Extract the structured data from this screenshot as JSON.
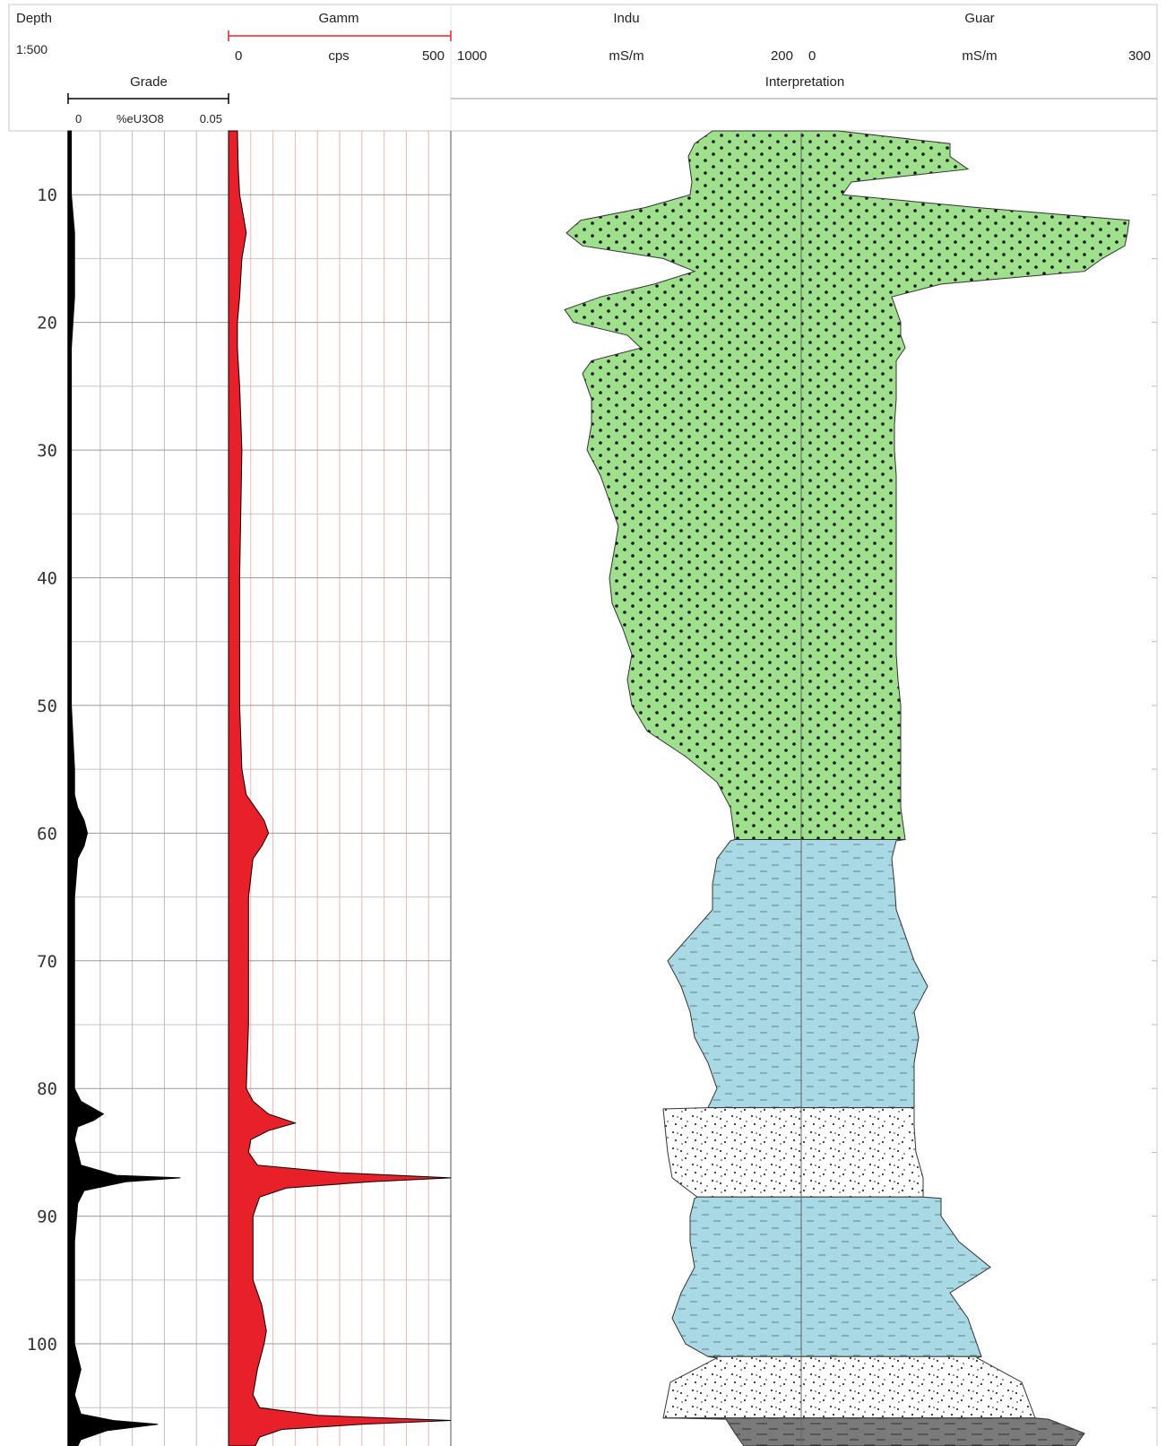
{
  "header": {
    "depth_label": "Depth",
    "scale_label": "1:500",
    "gamma": {
      "title": "Gamm",
      "min": "0",
      "unit": "cps",
      "max": "500",
      "color": "#e8202a"
    },
    "grade": {
      "title": "Grade",
      "min": "0",
      "unit": "%eU3O8",
      "max": "0.05",
      "color": "#000000"
    },
    "induction": {
      "title": "Indu",
      "left": "1000",
      "unit": "mS/m",
      "right": "200"
    },
    "guard": {
      "title": "Guar",
      "left": "0",
      "unit": "mS/m",
      "right": "300"
    },
    "interpretation_title": "Interpretation"
  },
  "chart_data": {
    "type": "area",
    "ylim": [
      5,
      108
    ],
    "depth_ticks": [
      10,
      20,
      30,
      40,
      50,
      60,
      70,
      80,
      90,
      100
    ],
    "grade": {
      "unit": "%eU3O8",
      "xlim": [
        0,
        0.05
      ],
      "depth": [
        5,
        10,
        13,
        18,
        22,
        30,
        40,
        50,
        55,
        57,
        58,
        59,
        60,
        61,
        62,
        65,
        70,
        75,
        80,
        81,
        82,
        82.5,
        83,
        84,
        86,
        86.8,
        87,
        87.3,
        88,
        89,
        92,
        95,
        100,
        101,
        102,
        103,
        104,
        105.5,
        106,
        106.3,
        106.8,
        107.5,
        108
      ],
      "values": [
        0.001,
        0.001,
        0.002,
        0.002,
        0.001,
        0.001,
        0.001,
        0.001,
        0.002,
        0.002,
        0.003,
        0.005,
        0.006,
        0.005,
        0.003,
        0.002,
        0.002,
        0.002,
        0.002,
        0.004,
        0.011,
        0.008,
        0.003,
        0.002,
        0.004,
        0.015,
        0.035,
        0.018,
        0.005,
        0.003,
        0.002,
        0.002,
        0.002,
        0.003,
        0.004,
        0.003,
        0.002,
        0.004,
        0.014,
        0.028,
        0.012,
        0.004,
        0.003
      ]
    },
    "gamma": {
      "unit": "cps",
      "xlim": [
        0,
        500
      ],
      "depth": [
        5,
        8,
        10,
        12,
        13,
        15,
        18,
        20,
        22,
        25,
        30,
        40,
        50,
        55,
        57,
        58,
        59,
        60,
        61,
        62,
        65,
        70,
        75,
        80,
        81,
        82,
        82.7,
        83.3,
        84,
        85,
        86,
        86.6,
        87,
        87.3,
        87.8,
        88.5,
        90,
        95,
        97,
        99,
        100,
        102,
        104,
        105,
        105.6,
        106,
        106.3,
        106.7,
        107.3,
        108
      ],
      "values": [
        20,
        22,
        25,
        35,
        40,
        30,
        25,
        20,
        20,
        25,
        30,
        25,
        25,
        30,
        40,
        60,
        80,
        90,
        75,
        55,
        45,
        45,
        45,
        40,
        55,
        90,
        150,
        90,
        50,
        45,
        65,
        250,
        500,
        320,
        130,
        70,
        55,
        55,
        75,
        85,
        80,
        65,
        55,
        70,
        200,
        500,
        300,
        120,
        70,
        60
      ]
    },
    "interpretation": [
      {
        "top": 5,
        "bottom": 60.5,
        "lithology": "sand",
        "color": "#9ee08c"
      },
      {
        "top": 60.5,
        "bottom": 81.5,
        "lithology": "clay",
        "color": "#a9d9e4"
      },
      {
        "top": 81.5,
        "bottom": 88.5,
        "lithology": "gravel",
        "color": "#ffffff"
      },
      {
        "top": 88.5,
        "bottom": 101,
        "lithology": "clay",
        "color": "#a9d9e4"
      },
      {
        "top": 101,
        "bottom": 105.8,
        "lithology": "gravel",
        "color": "#ffffff"
      },
      {
        "top": 105.8,
        "bottom": 108,
        "lithology": "shale",
        "color": "#7a7a7a"
      }
    ],
    "interpretation_profile": {
      "depth": [
        5,
        6,
        7,
        8,
        9,
        10,
        11,
        12,
        13,
        14,
        15,
        16,
        17,
        18,
        19,
        20,
        21,
        22,
        23,
        24,
        26,
        28,
        30,
        32,
        34,
        36,
        38,
        40,
        42,
        44,
        46,
        48,
        50,
        52,
        54,
        56,
        58,
        60.5,
        60.6,
        62,
        64,
        66,
        68,
        70,
        72,
        74,
        76,
        78,
        80,
        81.5,
        81.6,
        83,
        85,
        87,
        88.5,
        88.6,
        90,
        92,
        94,
        96,
        98,
        100,
        101,
        101.1,
        103,
        105.8,
        105.9,
        107,
        108
      ],
      "induction": [
        795,
        775,
        768,
        770,
        772,
        770,
        720,
        648,
        632,
        650,
        740,
        775,
        730,
        670,
        630,
        640,
        700,
        715,
        660,
        650,
        660,
        660,
        655,
        670,
        680,
        690,
        685,
        680,
        683,
        695,
        705,
        700,
        705,
        722,
        765,
        800,
        815,
        820,
        815,
        800,
        795,
        795,
        770,
        745,
        760,
        770,
        775,
        790,
        800,
        790,
        740,
        742,
        745,
        750,
        778,
        775,
        770,
        770,
        775,
        760,
        750,
        765,
        790,
        800,
        748,
        740,
        810,
        820,
        830
      ],
      "guard": [
        935,
        1060,
        1060,
        1080,
        950,
        940,
        1090,
        1260,
        1258,
        1255,
        1230,
        1210,
        1050,
        995,
        1000,
        1005,
        1005,
        1010,
        1000,
        1000,
        1000,
        998,
        998,
        1000,
        1000,
        1000,
        1000,
        1000,
        1000,
        1000,
        1000,
        1002,
        1005,
        1005,
        1005,
        1005,
        1005,
        1010,
        1000,
        995,
        998,
        1000,
        1010,
        1020,
        1035,
        1020,
        1025,
        1020,
        1020,
        1020,
        1020,
        1020,
        1022,
        1030,
        1030,
        1050,
        1050,
        1070,
        1105,
        1060,
        1080,
        1090,
        1095,
        1090,
        1140,
        1155,
        1170,
        1210,
        1200
      ]
    }
  }
}
